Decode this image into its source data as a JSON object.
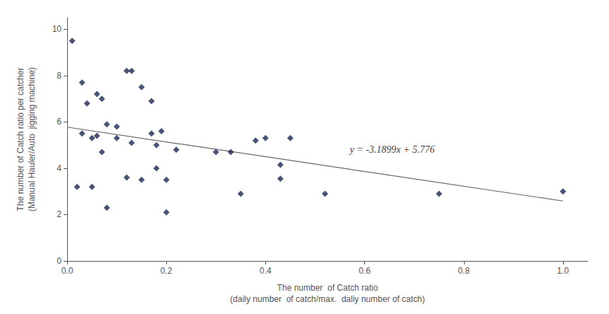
{
  "chart_data": {
    "type": "scatter",
    "xlabel": "The number  of Catch ratio\n(daily number  of catch/max.  daliy number of catch)",
    "ylabel": "The number of Catch ratio per catcher\n(Manual Hauler/Auto  jigging machine)",
    "series": [
      {
        "type": "scatter",
        "marker": "diamond",
        "color": "#1c2951",
        "x": [
          0.01,
          0.02,
          0.03,
          0.03,
          0.04,
          0.05,
          0.05,
          0.06,
          0.06,
          0.07,
          0.07,
          0.08,
          0.08,
          0.1,
          0.1,
          0.12,
          0.12,
          0.13,
          0.13,
          0.15,
          0.15,
          0.17,
          0.17,
          0.18,
          0.18,
          0.19,
          0.2,
          0.2,
          0.22,
          0.3,
          0.33,
          0.35,
          0.38,
          0.4,
          0.43,
          0.43,
          0.45,
          0.52,
          0.75,
          1.0
        ],
        "values": [
          9.5,
          3.2,
          5.5,
          7.7,
          6.8,
          5.3,
          3.2,
          5.4,
          7.2,
          7.0,
          4.7,
          5.9,
          2.3,
          5.8,
          5.3,
          8.2,
          3.6,
          8.2,
          5.1,
          7.5,
          3.5,
          6.9,
          5.5,
          5.0,
          4.0,
          5.6,
          2.1,
          3.5,
          4.8,
          4.7,
          4.7,
          2.9,
          5.2,
          5.3,
          4.15,
          3.55,
          5.3,
          2.9,
          2.9,
          3.0
        ]
      },
      {
        "type": "line",
        "line_style": "solid",
        "color": "#666666",
        "x": [
          0.0,
          1.0
        ],
        "values": [
          5.776,
          2.5861
        ]
      }
    ],
    "annotations": [
      {
        "text": "y = -3.1899x + 5.776",
        "x": 0.57,
        "y": 4.6
      }
    ],
    "xlim": [
      0,
      1.05
    ],
    "ylim": [
      0,
      10.5
    ],
    "xticks": [
      {
        "value": 0,
        "label": "0.0"
      },
      0.2,
      0.4,
      0.6,
      0.8,
      {
        "value": 1.0,
        "label": "1.0"
      }
    ],
    "yticks": [
      0,
      2,
      4,
      6,
      8,
      10
    ],
    "grid": false
  }
}
